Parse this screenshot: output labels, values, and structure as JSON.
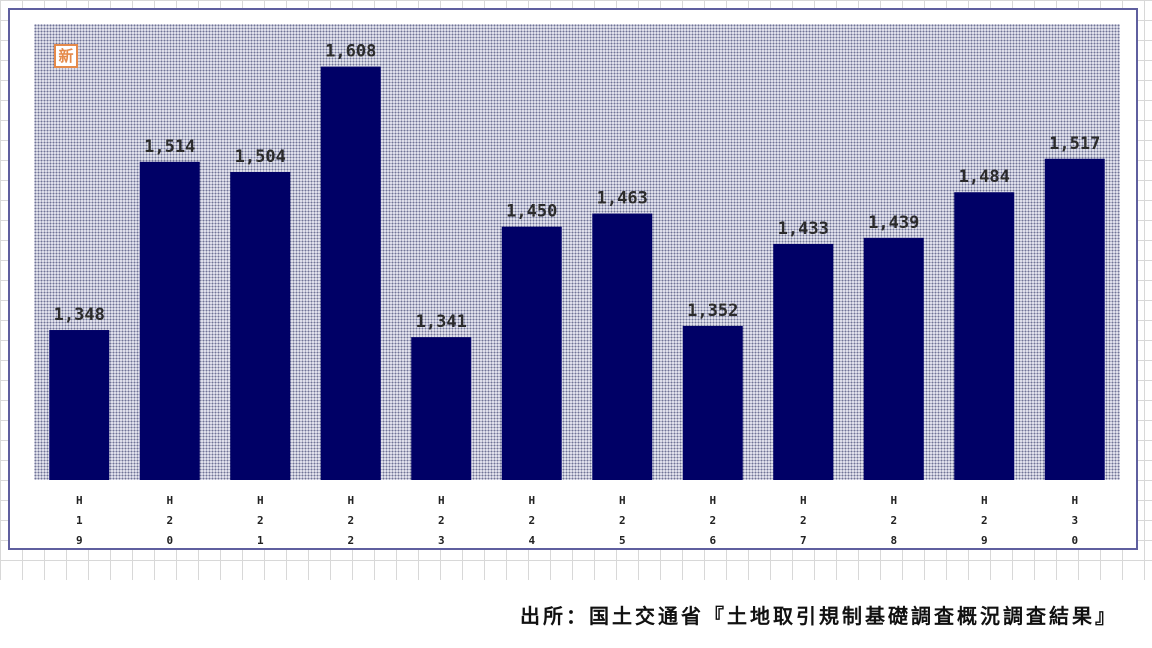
{
  "badge": {
    "text": "新"
  },
  "source_note": "出所：国土交通省『土地取引規制基礎調査概況調査結果』",
  "colors": {
    "bar": "#000066",
    "frame": "#5f5f9f",
    "badge": "#e58a4a"
  },
  "chart_data": {
    "type": "bar",
    "categories": [
      "H19",
      "H20",
      "H21",
      "H22",
      "H23",
      "H24",
      "H25",
      "H26",
      "H27",
      "H28",
      "H29",
      "H30"
    ],
    "tick_labels": [
      [
        "H",
        "1",
        "9"
      ],
      [
        "H",
        "2",
        "0"
      ],
      [
        "H",
        "2",
        "1"
      ],
      [
        "H",
        "2",
        "2"
      ],
      [
        "H",
        "2",
        "3"
      ],
      [
        "H",
        "2",
        "4"
      ],
      [
        "H",
        "2",
        "5"
      ],
      [
        "H",
        "2",
        "6"
      ],
      [
        "H",
        "2",
        "7"
      ],
      [
        "H",
        "2",
        "8"
      ],
      [
        "H",
        "2",
        "9"
      ],
      [
        "H",
        "3",
        "0"
      ]
    ],
    "values": [
      1348,
      1514,
      1504,
      1608,
      1341,
      1450,
      1463,
      1352,
      1433,
      1439,
      1484,
      1517
    ],
    "value_labels": [
      "1,348",
      "1,514",
      "1,504",
      "1,608",
      "1,341",
      "1,450",
      "1,463",
      "1,352",
      "1,433",
      "1,439",
      "1,484",
      "1,517"
    ],
    "ylim": [
      1200,
      1650
    ],
    "grid": false,
    "title": "",
    "xlabel": "",
    "ylabel": ""
  }
}
